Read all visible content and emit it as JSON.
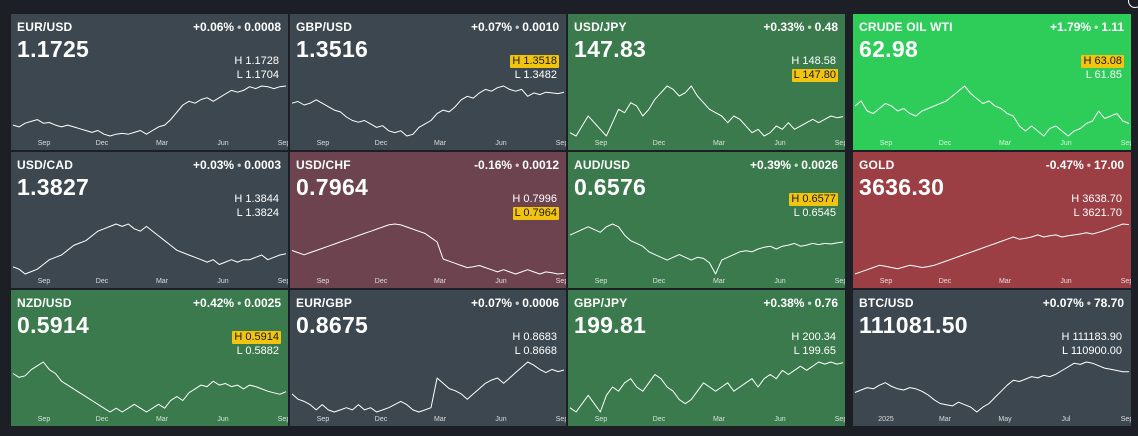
{
  "colors": {
    "neutral": "#3c474f",
    "green": "#3a7a4c",
    "bright_green": "#2ecc59",
    "maroon": "#6e4350",
    "red": "#9c3f45",
    "highlight": "#f1c40f"
  },
  "tiles": [
    {
      "name": "EUR/USD",
      "change_pct": "+0.06%",
      "change_abs": "0.0008",
      "price": "1.1725",
      "high": "H 1.1728",
      "low": "L 1.1704",
      "hot": "",
      "color": "neutral",
      "x_labels": [
        "Sep",
        "Dec",
        "Mar",
        "Jun",
        "Sep"
      ],
      "series": [
        1.065,
        1.06,
        1.07,
        1.075,
        1.08,
        1.07,
        1.072,
        1.065,
        1.06,
        1.065,
        1.06,
        1.055,
        1.05,
        1.045,
        1.05,
        1.04,
        1.035,
        1.04,
        1.042,
        1.04,
        1.045,
        1.05,
        1.04,
        1.05,
        1.06,
        1.065,
        1.08,
        1.1,
        1.12,
        1.13,
        1.125,
        1.135,
        1.14,
        1.13,
        1.14,
        1.15,
        1.16,
        1.155,
        1.16,
        1.17,
        1.165,
        1.172,
        1.17,
        1.165,
        1.17,
        1.172
      ]
    },
    {
      "name": "GBP/USD",
      "change_pct": "+0.07%",
      "change_abs": "0.0010",
      "price": "1.3516",
      "high": "H 1.3518",
      "low": "L 1.3482",
      "hot": "high",
      "color": "neutral",
      "x_labels": [
        "Sep",
        "Dec",
        "Mar",
        "Jun",
        "Sep"
      ],
      "series": [
        1.32,
        1.325,
        1.315,
        1.32,
        1.33,
        1.32,
        1.31,
        1.3,
        1.295,
        1.28,
        1.27,
        1.265,
        1.27,
        1.26,
        1.25,
        1.255,
        1.24,
        1.235,
        1.24,
        1.225,
        1.23,
        1.25,
        1.26,
        1.27,
        1.29,
        1.3,
        1.295,
        1.31,
        1.33,
        1.34,
        1.335,
        1.35,
        1.36,
        1.355,
        1.365,
        1.37,
        1.36,
        1.355,
        1.36,
        1.34,
        1.35,
        1.345,
        1.352,
        1.35,
        1.348,
        1.3516
      ]
    },
    {
      "name": "USD/JPY",
      "change_pct": "+0.33%",
      "change_abs": "0.48",
      "price": "147.83",
      "high": "H 148.58",
      "low": "L 147.80",
      "hot": "low",
      "color": "green",
      "x_labels": [
        "Sep",
        "Dec",
        "Mar",
        "Jun",
        "Sep"
      ],
      "series": [
        143,
        142,
        145,
        148,
        146,
        144,
        142,
        146,
        150,
        149,
        152,
        151,
        148,
        150,
        153,
        155,
        157,
        156,
        154,
        155,
        157,
        154,
        152,
        150,
        149,
        148,
        146,
        148,
        147,
        145,
        143,
        144,
        142,
        143,
        145,
        144,
        146,
        144,
        145,
        146,
        147,
        146,
        147,
        148,
        147.5,
        147.83
      ]
    },
    {
      "name": "CRUDE OIL WTI",
      "change_pct": "+1.79%",
      "change_abs": "1.11",
      "price": "62.98",
      "high": "H 63.08",
      "low": "L 61.85",
      "hot": "high",
      "color": "bright_green",
      "x_labels": [
        "Sep",
        "Dec",
        "Mar",
        "Jun",
        "Sep"
      ],
      "series": [
        70,
        72,
        68,
        67,
        69,
        71,
        70,
        68,
        69,
        67,
        66,
        68,
        69,
        70,
        71,
        72,
        74,
        76,
        78,
        75,
        73,
        71,
        72,
        70,
        69,
        67,
        66,
        62,
        60,
        62,
        60,
        58,
        61,
        62,
        60,
        58,
        60,
        61,
        63,
        64,
        68,
        65,
        66,
        67,
        64,
        63
      ]
    },
    {
      "name": "USD/CAD",
      "change_pct": "+0.03%",
      "change_abs": "0.0003",
      "price": "1.3827",
      "high": "H 1.3844",
      "low": "L 1.3824",
      "hot": "",
      "color": "neutral",
      "x_labels": [
        "Sep",
        "Dec",
        "Mar",
        "Jun",
        "Sep"
      ],
      "series": [
        1.355,
        1.35,
        1.34,
        1.345,
        1.35,
        1.36,
        1.37,
        1.375,
        1.38,
        1.39,
        1.4,
        1.405,
        1.41,
        1.42,
        1.43,
        1.435,
        1.44,
        1.445,
        1.44,
        1.445,
        1.435,
        1.43,
        1.44,
        1.43,
        1.42,
        1.41,
        1.4,
        1.39,
        1.385,
        1.38,
        1.375,
        1.37,
        1.365,
        1.37,
        1.36,
        1.365,
        1.37,
        1.365,
        1.37,
        1.37,
        1.375,
        1.38,
        1.37,
        1.375,
        1.38,
        1.3827
      ]
    },
    {
      "name": "USD/CHF",
      "change_pct": "-0.16%",
      "change_abs": "0.0012",
      "price": "0.7964",
      "high": "H 0.7996",
      "low": "L 0.7964",
      "hot": "low",
      "color": "maroon",
      "x_labels": [
        "Sep",
        "Dec",
        "Mar",
        "Jun",
        "Sep"
      ],
      "series": [
        0.85,
        0.845,
        0.84,
        0.845,
        0.85,
        0.855,
        0.86,
        0.865,
        0.87,
        0.875,
        0.88,
        0.885,
        0.89,
        0.895,
        0.9,
        0.905,
        0.91,
        0.912,
        0.91,
        0.905,
        0.9,
        0.895,
        0.89,
        0.88,
        0.87,
        0.83,
        0.825,
        0.82,
        0.815,
        0.81,
        0.812,
        0.815,
        0.81,
        0.805,
        0.8,
        0.805,
        0.8,
        0.795,
        0.8,
        0.805,
        0.8,
        0.795,
        0.8,
        0.798,
        0.795,
        0.7964
      ]
    },
    {
      "name": "AUD/USD",
      "change_pct": "+0.39%",
      "change_abs": "0.0026",
      "price": "0.6576",
      "high": "H 0.6577",
      "low": "L 0.6545",
      "hot": "high",
      "color": "green",
      "x_labels": [
        "Sep",
        "Dec",
        "Mar",
        "Jun",
        "Sep"
      ],
      "series": [
        0.67,
        0.675,
        0.68,
        0.685,
        0.68,
        0.675,
        0.685,
        0.69,
        0.685,
        0.67,
        0.66,
        0.655,
        0.65,
        0.64,
        0.635,
        0.63,
        0.625,
        0.63,
        0.635,
        0.63,
        0.625,
        0.63,
        0.628,
        0.62,
        0.6,
        0.625,
        0.63,
        0.635,
        0.64,
        0.642,
        0.64,
        0.645,
        0.648,
        0.65,
        0.645,
        0.65,
        0.652,
        0.655,
        0.65,
        0.652,
        0.655,
        0.653,
        0.655,
        0.654,
        0.656,
        0.6576
      ]
    },
    {
      "name": "GOLD",
      "change_pct": "-0.47%",
      "change_abs": "17.00",
      "price": "3636.30",
      "high": "H 3638.70",
      "low": "L 3621.70",
      "hot": "",
      "color": "red",
      "x_labels": [
        "Sep",
        "Dec",
        "Mar",
        "Jun",
        "Sep"
      ],
      "series": [
        2500,
        2550,
        2600,
        2650,
        2700,
        2680,
        2650,
        2620,
        2660,
        2700,
        2680,
        2650,
        2670,
        2700,
        2750,
        2800,
        2850,
        2900,
        2950,
        3000,
        3050,
        3100,
        3150,
        3200,
        3250,
        3300,
        3350,
        3300,
        3320,
        3350,
        3400,
        3350,
        3380,
        3400,
        3350,
        3380,
        3400,
        3420,
        3450,
        3420,
        3460,
        3500,
        3550,
        3600,
        3650,
        3636
      ]
    },
    {
      "name": "NZD/USD",
      "change_pct": "+0.42%",
      "change_abs": "0.0025",
      "price": "0.5914",
      "high": "H 0.5914",
      "low": "L 0.5882",
      "hot": "high",
      "color": "green",
      "x_labels": [
        "Sep",
        "Dec",
        "Mar",
        "Jun",
        "Sep"
      ],
      "series": [
        0.615,
        0.61,
        0.612,
        0.62,
        0.625,
        0.63,
        0.62,
        0.615,
        0.605,
        0.6,
        0.595,
        0.59,
        0.585,
        0.58,
        0.575,
        0.57,
        0.565,
        0.57,
        0.565,
        0.57,
        0.575,
        0.57,
        0.565,
        0.57,
        0.575,
        0.57,
        0.58,
        0.585,
        0.58,
        0.59,
        0.595,
        0.6,
        0.598,
        0.605,
        0.6,
        0.602,
        0.598,
        0.6,
        0.595,
        0.6,
        0.598,
        0.595,
        0.592,
        0.59,
        0.588,
        0.5914
      ]
    },
    {
      "name": "EUR/GBP",
      "change_pct": "+0.07%",
      "change_abs": "0.0006",
      "price": "0.8675",
      "high": "H 0.8683",
      "low": "L 0.8668",
      "hot": "",
      "color": "neutral",
      "x_labels": [
        "Sep",
        "Dec",
        "Mar",
        "Jun",
        "Sep"
      ],
      "series": [
        0.845,
        0.84,
        0.838,
        0.835,
        0.83,
        0.835,
        0.83,
        0.828,
        0.83,
        0.832,
        0.83,
        0.835,
        0.83,
        0.832,
        0.828,
        0.83,
        0.832,
        0.835,
        0.838,
        0.835,
        0.83,
        0.828,
        0.83,
        0.832,
        0.86,
        0.855,
        0.85,
        0.848,
        0.845,
        0.84,
        0.845,
        0.85,
        0.855,
        0.858,
        0.86,
        0.855,
        0.86,
        0.865,
        0.87,
        0.875,
        0.872,
        0.868,
        0.865,
        0.868,
        0.866,
        0.8675
      ]
    },
    {
      "name": "GBP/JPY",
      "change_pct": "+0.38%",
      "change_abs": "0.76",
      "price": "199.81",
      "high": "H 200.34",
      "low": "L 199.65",
      "hot": "",
      "color": "green",
      "x_labels": [
        "Sep",
        "Dec",
        "Mar",
        "Jun",
        "Sep"
      ],
      "series": [
        189,
        188,
        190,
        192,
        190,
        188,
        192,
        194,
        193,
        195,
        196,
        194,
        193,
        195,
        197,
        196,
        194,
        193,
        191,
        190,
        191,
        193,
        195,
        194,
        193,
        194,
        195,
        193,
        194,
        195,
        196,
        194,
        196,
        197,
        196,
        198,
        197,
        198,
        199,
        198,
        199,
        200,
        199.5,
        200,
        199.5,
        199.81
      ]
    },
    {
      "name": "BTC/USD",
      "change_pct": "+0.07%",
      "change_abs": "78.70",
      "price": "111081.50",
      "high": "H 111183.90",
      "low": "L 110900.00",
      "hot": "",
      "color": "neutral",
      "x_labels": [
        "2025",
        "Mar",
        "May",
        "Jul",
        "Sep"
      ],
      "series": [
        94000,
        96000,
        98000,
        97000,
        100000,
        102000,
        99000,
        97000,
        96000,
        98000,
        97000,
        95000,
        92000,
        88000,
        85000,
        84000,
        83000,
        86000,
        84000,
        82000,
        78000,
        82000,
        85000,
        90000,
        95000,
        100000,
        104000,
        103000,
        105000,
        107000,
        106000,
        108000,
        107000,
        109000,
        112000,
        115000,
        118000,
        117000,
        119000,
        118000,
        116000,
        114000,
        113000,
        112000,
        111000,
        111081
      ]
    }
  ]
}
